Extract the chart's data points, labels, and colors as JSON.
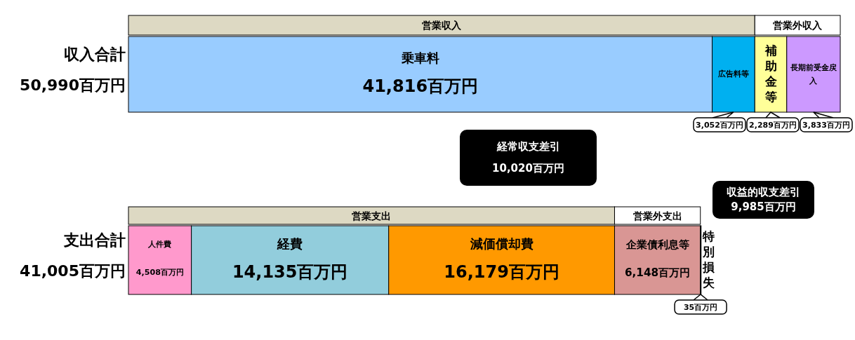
{
  "chart_data": {
    "type": "bar",
    "orientation": "horizontal",
    "stacked": true,
    "categories": [
      "収入合計\n50,990百万円",
      "支出合計\n41,005百万円"
    ],
    "series": [
      {
        "name": "乗車料",
        "color": "#99ccff",
        "values": [
          41816,
          null
        ],
        "value_labels": [
          "41,816百万円",
          null
        ]
      },
      {
        "name": "広告料等",
        "color": "#00b0f0",
        "values": [
          3052,
          null
        ],
        "value_labels": [
          "3,052百万円",
          null
        ]
      },
      {
        "name": "補助金等",
        "color": "#ffff99",
        "values": [
          2289,
          null
        ],
        "value_labels": [
          "2,289百万円",
          null
        ]
      },
      {
        "name": "長期前受金戻入",
        "color": "#cc99ff",
        "values": [
          3833,
          null
        ],
        "value_labels": [
          "3,833百万円",
          null
        ]
      },
      {
        "name": "人件費",
        "color": "#ff99cc",
        "values": [
          null,
          4508
        ],
        "value_labels": [
          null,
          "4,508百万円"
        ]
      },
      {
        "name": "経費",
        "color": "#92cddc",
        "values": [
          null,
          14135
        ],
        "value_labels": [
          null,
          "14,135百万円"
        ]
      },
      {
        "name": "減価償却費",
        "color": "#ff9900",
        "values": [
          null,
          16179
        ],
        "value_labels": [
          null,
          "16,179百万円"
        ]
      },
      {
        "name": "企業債利息等",
        "color": "#d99694",
        "values": [
          null,
          6148
        ],
        "value_labels": [
          null,
          "6,148百万円"
        ]
      },
      {
        "name": "特別損失",
        "color": "#92d050",
        "values": [
          null,
          35
        ],
        "value_labels": [
          null,
          "35百万円"
        ]
      }
    ],
    "bands": [
      {
        "axis": "x",
        "from": 0,
        "to": 44868,
        "label": "営業収入",
        "color": "#ddd9c3"
      },
      {
        "axis": "x",
        "from": 44868,
        "to": 50990,
        "label": "営業外収入",
        "color": "#ffffff"
      },
      {
        "axis": "x",
        "from": 0,
        "to": 34822,
        "label": "営業支出",
        "color": "#ddd9c3"
      },
      {
        "axis": "x",
        "from": 34822,
        "to": 40970,
        "label": "営業外支出",
        "color": "#ffffff"
      }
    ],
    "annotations": [
      "経常収支差引\n10,020百万円",
      "収益的収支差引\n9,985百万円"
    ]
  }
}
